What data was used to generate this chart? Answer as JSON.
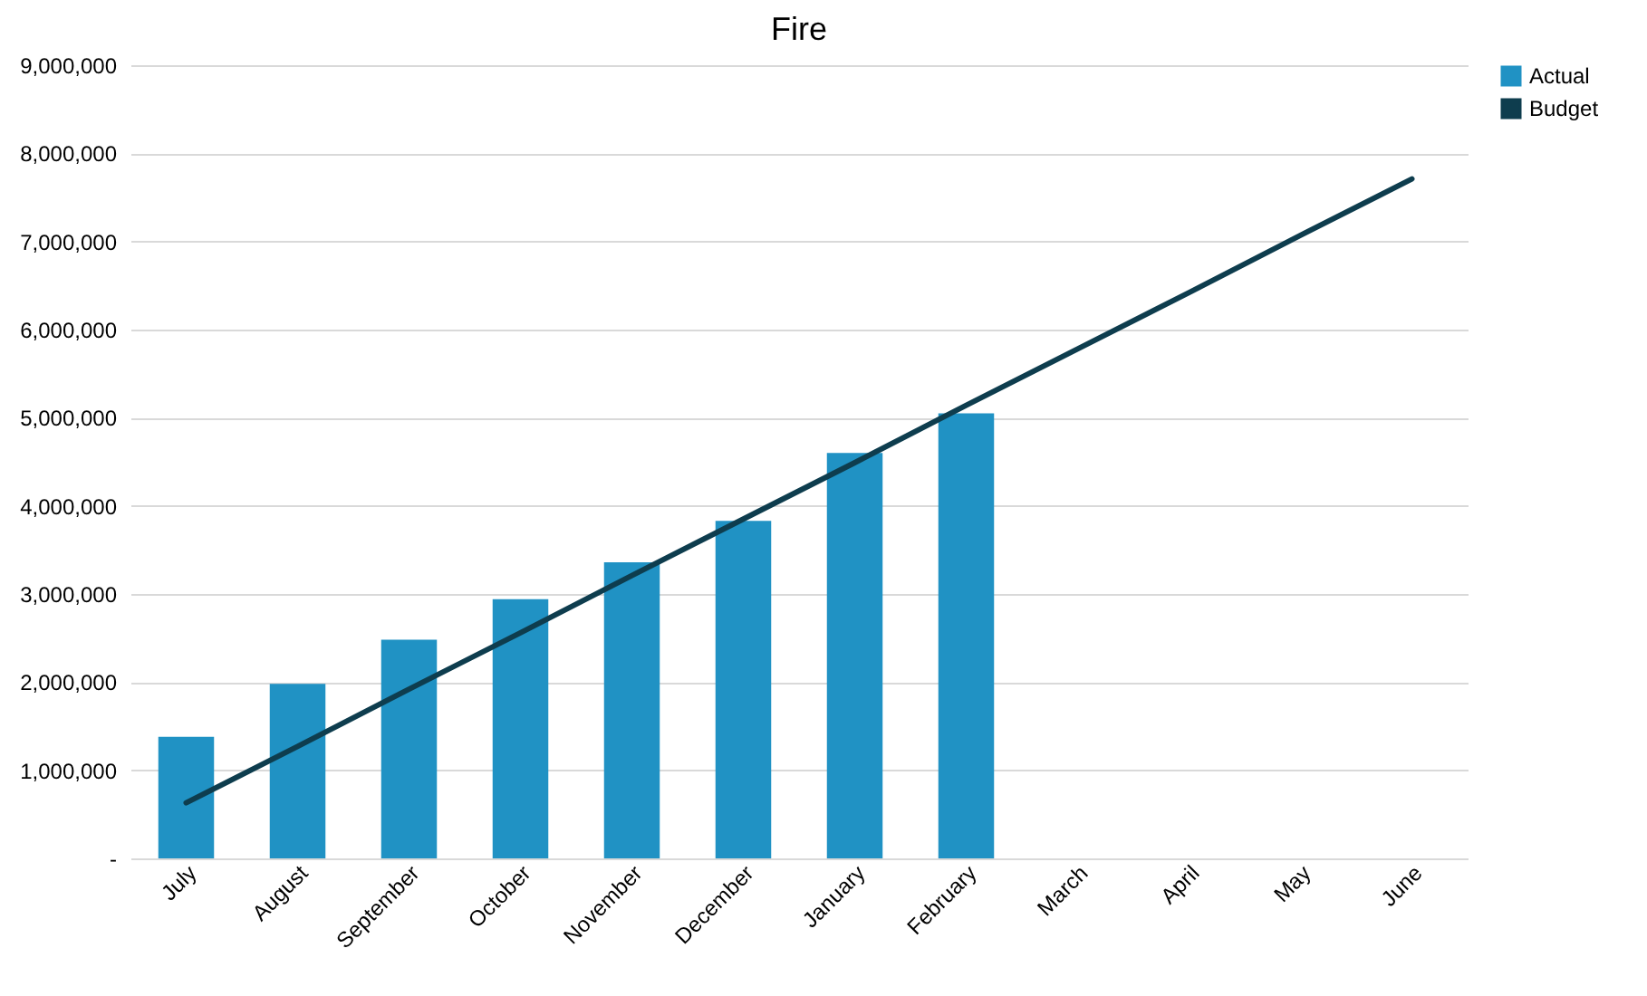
{
  "chart_data": {
    "type": "bar",
    "title": "Fire",
    "categories": [
      "July",
      "August",
      "September",
      "October",
      "November",
      "December",
      "January",
      "February",
      "March",
      "April",
      "May",
      "June"
    ],
    "series": [
      {
        "name": "Actual",
        "color": "#2092c4",
        "values": [
          1380000,
          1980000,
          2480000,
          2940000,
          3360000,
          3830000,
          4600000,
          5050000,
          null,
          null,
          null,
          null
        ]
      },
      {
        "name": "Budget",
        "type": "line",
        "color": "#0e3d4e",
        "values": [
          630000,
          1270000,
          1920000,
          2560000,
          3210000,
          3850000,
          4490000,
          5140000,
          5780000,
          6420000,
          7070000,
          7710000
        ]
      }
    ],
    "ylim": [
      0,
      9000000
    ],
    "yticks": [
      {
        "value": 0,
        "label": "-"
      },
      {
        "value": 1000000,
        "label": "1,000,000"
      },
      {
        "value": 2000000,
        "label": "2,000,000"
      },
      {
        "value": 3000000,
        "label": "3,000,000"
      },
      {
        "value": 4000000,
        "label": "4,000,000"
      },
      {
        "value": 5000000,
        "label": "5,000,000"
      },
      {
        "value": 6000000,
        "label": "6,000,000"
      },
      {
        "value": 7000000,
        "label": "7,000,000"
      },
      {
        "value": 8000000,
        "label": "8,000,000"
      },
      {
        "value": 9000000,
        "label": "9,000,000"
      }
    ],
    "grid": "y",
    "legend": "right"
  }
}
